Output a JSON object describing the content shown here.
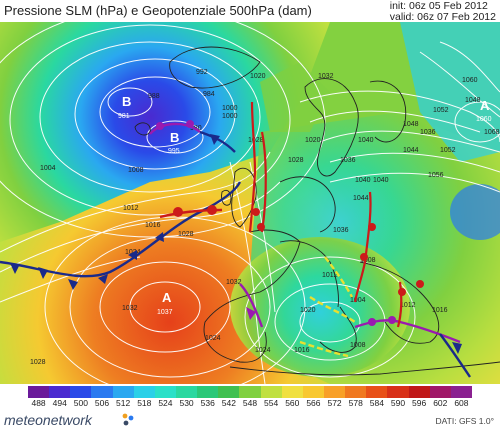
{
  "header": {
    "title": "Pressione SLM (hPa) e Geopotenziale 500hPa (dam)",
    "init": "init: 06z 05 Feb 2012",
    "valid": "valid: 06z 07 Feb 2012"
  },
  "map": {
    "pressure_centers": [
      {
        "type": "B",
        "value": "981"
      },
      {
        "type": "B",
        "value": "995"
      },
      {
        "type": "A",
        "value": "1037"
      },
      {
        "type": "A",
        "value": "1060"
      }
    ],
    "isobar_labels": [
      "992",
      "988",
      "984",
      "980",
      "1000",
      "1004",
      "1008",
      "1012",
      "1016",
      "1020",
      "1024",
      "1028",
      "1032",
      "1036",
      "1040",
      "1044",
      "1048",
      "1052",
      "1056",
      "1060",
      "1068",
      "1000",
      "1008",
      "1004",
      "1012",
      "1016",
      "1020",
      "1024",
      "1028",
      "1032",
      "1024",
      "1012",
      "1016",
      "1008",
      "1028",
      "1020",
      "1032",
      "1036",
      "1040",
      "1040",
      "1044",
      "1048",
      "1052",
      "1028",
      "1036"
    ],
    "colors": {
      "trough": "#6a2a9a",
      "ridge": "#e24a1a",
      "cold_front": "#1a2a8a",
      "warm_front": "#cc1a1a",
      "occlusion": "#9a1ab0",
      "trough_line": "#e8e030"
    }
  },
  "scale": {
    "labels": [
      "488",
      "494",
      "500",
      "506",
      "512",
      "518",
      "524",
      "530",
      "536",
      "542",
      "548",
      "554",
      "560",
      "566",
      "572",
      "578",
      "584",
      "590",
      "596",
      "602",
      "608"
    ],
    "colors": [
      "#6a1a9a",
      "#4a2ad0",
      "#2a4ae8",
      "#2a7af0",
      "#2aa8f0",
      "#2ad0e8",
      "#2ae0c8",
      "#2ad8a0",
      "#2ac878",
      "#40c050",
      "#80d040",
      "#c0e040",
      "#f0e040",
      "#f8c830",
      "#f8a028",
      "#f07820",
      "#e85018",
      "#d83018",
      "#c01818",
      "#a01868",
      "#8a2090"
    ]
  },
  "footer": {
    "logo": "meteonetwork",
    "dati": "DATI:  GFS  1.0°"
  }
}
